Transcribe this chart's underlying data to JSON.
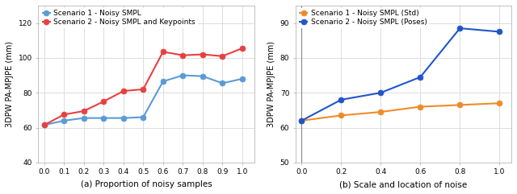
{
  "left": {
    "x": [
      0.0,
      0.1,
      0.2,
      0.3,
      0.4,
      0.5,
      0.6,
      0.7,
      0.8,
      0.9,
      1.0
    ],
    "s1_y": [
      61.5,
      64.0,
      65.5,
      65.5,
      65.5,
      66.0,
      86.5,
      90.0,
      89.5,
      85.5,
      88.0
    ],
    "s2_y": [
      61.5,
      67.5,
      69.5,
      75.0,
      81.0,
      82.0,
      103.5,
      101.5,
      102.0,
      101.0,
      105.5
    ],
    "s1_label": "Scenario 1 - Noisy SMPL",
    "s2_label": "Scenario 2 - Noisy SMPL and Keypoints",
    "s1_color": "#5b9bd5",
    "s2_color": "#e84040",
    "ylabel": "3DPW PA-MPJPE (mm)",
    "xlabel": "(a) Proportion of noisy samples",
    "ylim": [
      40,
      130
    ],
    "yticks": [
      40,
      60,
      80,
      100,
      120
    ],
    "xlim": [
      -0.03,
      1.06
    ],
    "xticks": [
      0.0,
      0.1,
      0.2,
      0.3,
      0.4,
      0.5,
      0.6,
      0.7,
      0.8,
      0.9,
      1.0
    ]
  },
  "right": {
    "x": [
      0.0,
      0.2,
      0.4,
      0.6,
      0.8,
      1.0
    ],
    "s1_y": [
      62.0,
      63.5,
      64.5,
      66.0,
      66.5,
      67.0
    ],
    "s2_y": [
      62.0,
      68.0,
      70.0,
      74.5,
      88.5,
      87.5
    ],
    "s1_label": "Scenario 1 - Noisy SMPL (Std)",
    "s2_label": "Scenario 2 - Noisy SMPL (Poses)",
    "s1_color": "#ed8c2b",
    "s2_color": "#2255cc",
    "ylabel": "3DPW PA-MPJPE (mm)",
    "xlabel": "(b) Scale and location of noise",
    "ylim": [
      50,
      95
    ],
    "yticks": [
      50,
      60,
      70,
      80,
      90
    ],
    "xlim": [
      -0.03,
      1.06
    ],
    "xticks": [
      0.0,
      0.2,
      0.4,
      0.6,
      0.8,
      1.0
    ]
  },
  "marker_size": 5,
  "linewidth": 1.5,
  "grid_color": "#dddddd",
  "bg_color": "#ffffff",
  "legend_fontsize": 6.5,
  "tick_fontsize": 6.5,
  "ylabel_fontsize": 7,
  "xlabel_fontsize": 7.5
}
